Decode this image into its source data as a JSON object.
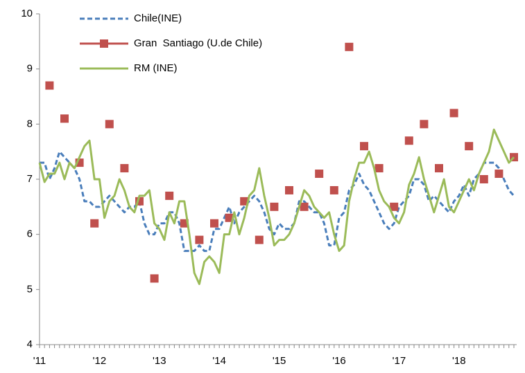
{
  "chart_data": {
    "type": "line",
    "categories": [
      "'11",
      null,
      null,
      null,
      null,
      null,
      null,
      null,
      null,
      null,
      null,
      null,
      "'12",
      null,
      null,
      null,
      null,
      null,
      null,
      null,
      null,
      null,
      null,
      null,
      "'13",
      null,
      null,
      null,
      null,
      null,
      null,
      null,
      null,
      null,
      null,
      null,
      "'14",
      null,
      null,
      null,
      null,
      null,
      null,
      null,
      null,
      null,
      null,
      null,
      "'15",
      null,
      null,
      null,
      null,
      null,
      null,
      null,
      null,
      null,
      null,
      null,
      "'16",
      null,
      null,
      null,
      null,
      null,
      null,
      null,
      null,
      null,
      null,
      null,
      "'17",
      null,
      null,
      null,
      null,
      null,
      null,
      null,
      null,
      null,
      null,
      null,
      "'18",
      null,
      null,
      null,
      null,
      null,
      null,
      null,
      null,
      null,
      null,
      null
    ],
    "series": [
      {
        "name": "Chile(INE)",
        "color": "#4a7ebb",
        "dash": true,
        "line": true,
        "values": [
          7.3,
          7.3,
          7.0,
          7.2,
          7.5,
          7.4,
          7.3,
          7.2,
          7.0,
          6.6,
          6.6,
          6.5,
          6.5,
          6.6,
          6.7,
          6.6,
          6.5,
          6.4,
          6.5,
          6.5,
          6.6,
          6.2,
          6.0,
          6.0,
          6.2,
          6.2,
          6.4,
          6.4,
          6.2,
          5.7,
          5.7,
          5.7,
          5.8,
          5.7,
          5.7,
          6.1,
          6.1,
          6.3,
          6.5,
          6.2,
          6.4,
          6.5,
          6.6,
          6.7,
          6.6,
          6.4,
          6.1,
          6.0,
          6.2,
          6.1,
          6.1,
          6.2,
          6.6,
          6.6,
          6.5,
          6.4,
          6.4,
          6.2,
          5.8,
          5.8,
          6.3,
          6.4,
          6.8,
          6.9,
          7.1,
          6.9,
          6.8,
          6.6,
          6.4,
          6.2,
          6.1,
          6.2,
          6.5,
          6.6,
          6.7,
          7.0,
          7.0,
          6.9,
          6.6,
          6.7,
          6.6,
          6.5,
          6.4,
          6.6,
          6.7,
          6.9,
          6.7,
          7.0,
          7.1,
          7.3,
          7.3,
          7.3,
          7.2,
          7.0,
          6.8,
          6.7
        ]
      },
      {
        "name": "Gran  Santiago (U.de Chile)",
        "color": "#c0504d",
        "line": false,
        "marker": "square",
        "values": [
          null,
          null,
          8.7,
          null,
          null,
          8.1,
          null,
          null,
          7.3,
          null,
          null,
          6.2,
          null,
          null,
          8.0,
          null,
          null,
          7.2,
          null,
          null,
          6.6,
          null,
          null,
          5.2,
          null,
          null,
          6.7,
          null,
          null,
          6.2,
          null,
          null,
          5.9,
          null,
          null,
          6.2,
          null,
          null,
          6.3,
          null,
          null,
          6.6,
          null,
          null,
          5.9,
          null,
          null,
          6.5,
          null,
          null,
          6.8,
          null,
          null,
          6.5,
          null,
          null,
          7.1,
          null,
          null,
          6.8,
          null,
          null,
          9.4,
          null,
          null,
          7.6,
          null,
          null,
          7.2,
          null,
          null,
          6.5,
          null,
          null,
          7.7,
          null,
          null,
          8.0,
          null,
          null,
          7.2,
          null,
          null,
          8.2,
          null,
          null,
          7.6,
          null,
          null,
          7.0,
          null,
          null,
          7.1,
          null,
          null,
          7.4
        ]
      },
      {
        "name": "RM (INE)",
        "color": "#9bbb59",
        "line": true,
        "values": [
          7.3,
          6.95,
          7.1,
          7.1,
          7.3,
          7.0,
          7.3,
          7.2,
          7.4,
          7.6,
          7.7,
          7.0,
          7.0,
          6.3,
          6.6,
          6.7,
          7.0,
          6.8,
          6.5,
          6.4,
          6.7,
          6.7,
          6.8,
          6.2,
          6.1,
          5.9,
          6.4,
          6.2,
          6.6,
          6.6,
          6.0,
          5.3,
          5.1,
          5.5,
          5.6,
          5.5,
          5.3,
          6.0,
          6.0,
          6.4,
          6.0,
          6.3,
          6.7,
          6.8,
          7.2,
          6.7,
          6.3,
          5.8,
          5.9,
          5.9,
          6.0,
          6.2,
          6.5,
          6.8,
          6.7,
          6.5,
          6.4,
          6.3,
          6.4,
          6.0,
          5.7,
          5.8,
          6.6,
          7.0,
          7.3,
          7.3,
          7.5,
          7.2,
          6.8,
          6.6,
          6.5,
          6.3,
          6.2,
          6.4,
          6.9,
          7.1,
          7.4,
          7.0,
          6.7,
          6.4,
          6.7,
          7.0,
          6.5,
          6.4,
          6.6,
          6.8,
          7.0,
          6.8,
          7.1,
          7.3,
          7.5,
          7.9,
          7.7,
          7.5,
          7.3,
          7.4
        ]
      }
    ],
    "ylim": [
      4,
      10
    ],
    "yticks": [
      4,
      5,
      6,
      7,
      8,
      9,
      10
    ],
    "grid": false,
    "legend": "top-left"
  }
}
